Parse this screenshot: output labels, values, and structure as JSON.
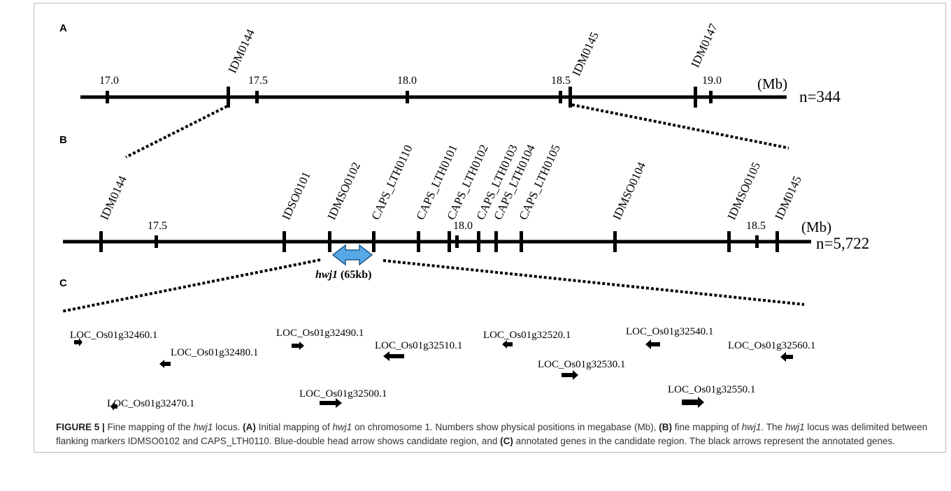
{
  "panels": {
    "A": {
      "letter": "A",
      "unit": "(Mb)",
      "count": "n=344",
      "ticks": [
        "17.0",
        "17.5",
        "18.0",
        "18.5",
        "19.0"
      ],
      "markers": [
        "IDM0144",
        "IDM0145",
        "IDM0147"
      ]
    },
    "B": {
      "letter": "B",
      "unit": "(Mb)",
      "count": "n=5,722",
      "ticks": [
        "17.5",
        "18.0",
        "18.5"
      ],
      "markers": [
        "IDM0144",
        "IDSO0101",
        "IDMSO0102",
        "CAPS_LTH0110",
        "CAPS_LTH0101",
        "CAPS_LTH0102",
        "CAPS_LTH0103",
        "CAPS_LTH0104",
        "CAPS_LTH0105",
        "IDMSO0104",
        "IDMSO0105",
        "IDM0145"
      ],
      "region": {
        "name": "hwj1",
        "size": "(65kb)",
        "color": "#57a9e6"
      }
    },
    "C": {
      "letter": "C",
      "genes": [
        {
          "name": "LOC_Os01g32460.1",
          "direction": "right"
        },
        {
          "name": "LOC_Os01g32470.1",
          "direction": "left"
        },
        {
          "name": "LOC_Os01g32480.1",
          "direction": "left"
        },
        {
          "name": "LOC_Os01g32490.1",
          "direction": "right"
        },
        {
          "name": "LOC_Os01g32500.1",
          "direction": "right"
        },
        {
          "name": "LOC_Os01g32510.1",
          "direction": "left"
        },
        {
          "name": "LOC_Os01g32520.1",
          "direction": "left"
        },
        {
          "name": "LOC_Os01g32530.1",
          "direction": "right"
        },
        {
          "name": "LOC_Os01g32540.1",
          "direction": "left"
        },
        {
          "name": "LOC_Os01g32550.1",
          "direction": "right"
        },
        {
          "name": "LOC_Os01g32560.1",
          "direction": "left"
        }
      ]
    }
  },
  "caption": {
    "figure_tag": "FIGURE 5 |",
    "t1": " Fine mapping of the ",
    "gene1": "hwj1",
    "t2": " locus. ",
    "lblA": "(A)",
    "t3": " Initial mapping of ",
    "gene2": "hwj1",
    "t4": " on chromosome 1. Numbers show physical positions in megabase (Mb), ",
    "lblB": "(B)",
    "t5": " fine mapping of ",
    "gene3": "hwj1",
    "t6": ". The ",
    "gene4": "hwj1",
    "t7": " locus was delimited between flanking markers IDMSO0102 and CAPS_LTH0110. Blue-double head arrow shows candidate region, and ",
    "lblC": "(C)",
    "t8": " annotated genes in the candidate region. The black arrows represent the annotated genes."
  }
}
